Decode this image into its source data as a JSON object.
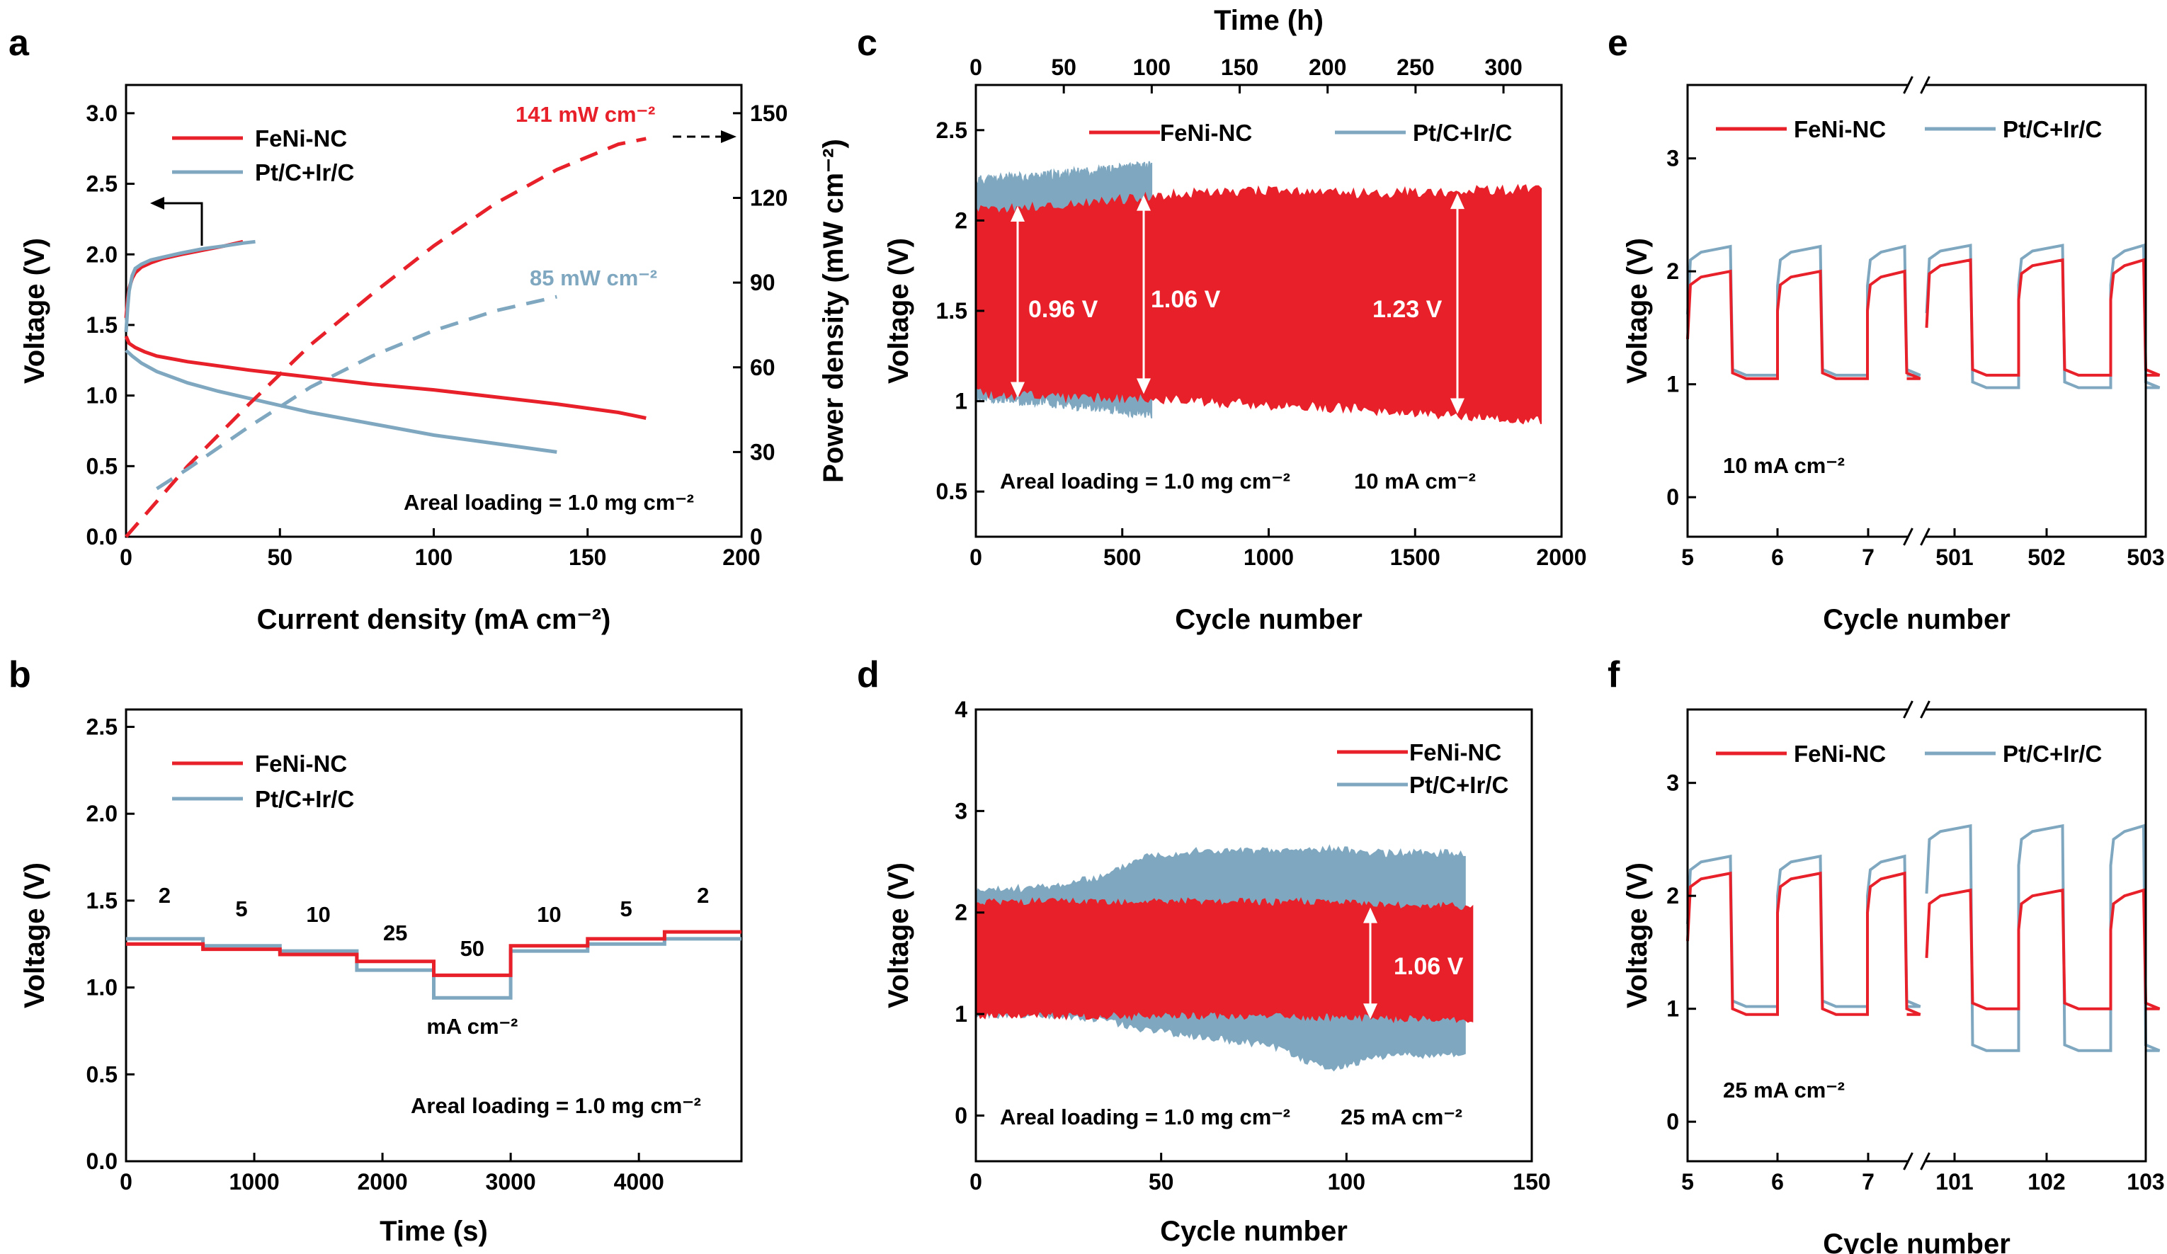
{
  "colors": {
    "red": "#e8202a",
    "blue": "#7fa8c0",
    "black": "#000000",
    "white": "#ffffff"
  },
  "chart_data": [
    {
      "panel": "a",
      "type": "line",
      "xlabel": "Current density (mA cm⁻²)",
      "ylabel": "Voltage (V)",
      "y2label": "Power density (mW cm⁻²)",
      "xlim": [
        0,
        200
      ],
      "ylim": [
        0,
        3.2
      ],
      "y2lim": [
        0,
        160
      ],
      "xticks": [
        0,
        50,
        100,
        150,
        200
      ],
      "yticks": [
        0.0,
        0.5,
        1.0,
        1.5,
        2.0,
        2.5,
        3.0
      ],
      "y2ticks": [
        0,
        30,
        60,
        90,
        120,
        150
      ],
      "legend": [
        "FeNi-NC",
        "Pt/C+Ir/C"
      ],
      "annotations": [
        "141 mW cm⁻²",
        "85 mW cm⁻²",
        "Areal loading = 1.0 mg cm⁻²"
      ],
      "series": [
        {
          "name": "FeNi-NC",
          "axis": "y",
          "style": "solid",
          "x": [
            0,
            1,
            3,
            6,
            10,
            20,
            40,
            60,
            80,
            100,
            120,
            140,
            160,
            169
          ],
          "y": [
            1.42,
            1.37,
            1.34,
            1.31,
            1.28,
            1.24,
            1.18,
            1.13,
            1.08,
            1.04,
            0.99,
            0.94,
            0.88,
            0.84
          ]
        },
        {
          "name": "Pt/C+Ir/C",
          "axis": "y",
          "style": "solid",
          "x": [
            0,
            2,
            5,
            10,
            20,
            30,
            40,
            60,
            80,
            100,
            120,
            140
          ],
          "y": [
            1.32,
            1.28,
            1.23,
            1.17,
            1.09,
            1.03,
            0.98,
            0.88,
            0.8,
            0.72,
            0.66,
            0.6
          ]
        },
        {
          "name": "FeNi-NC",
          "axis": "y",
          "style": "solid",
          "x": [
            0,
            0.5,
            1,
            2,
            3,
            5,
            8,
            12,
            18,
            25,
            32,
            38
          ],
          "y": [
            1.55,
            1.68,
            1.76,
            1.83,
            1.87,
            1.91,
            1.94,
            1.97,
            2.0,
            2.03,
            2.06,
            2.09
          ]
        },
        {
          "name": "Pt/C+Ir/C",
          "axis": "y",
          "style": "solid",
          "x": [
            0,
            0.5,
            1,
            2,
            3,
            5,
            8,
            12,
            18,
            25,
            32,
            38,
            42
          ],
          "y": [
            1.45,
            1.62,
            1.74,
            1.85,
            1.9,
            1.93,
            1.96,
            1.98,
            2.01,
            2.04,
            2.06,
            2.08,
            2.09
          ]
        },
        {
          "name": "FeNi-NC",
          "axis": "y2",
          "style": "dashed",
          "x": [
            0,
            20,
            40,
            60,
            80,
            100,
            120,
            140,
            160,
            169
          ],
          "y": [
            0,
            25,
            47,
            68,
            86,
            103,
            118,
            130,
            139,
            141
          ]
        },
        {
          "name": "Pt/C+Ir/C",
          "axis": "y2",
          "style": "dashed",
          "x": [
            10,
            20,
            40,
            60,
            80,
            100,
            120,
            140
          ],
          "y": [
            17,
            24,
            39,
            53,
            64,
            73,
            80,
            85
          ]
        }
      ]
    },
    {
      "panel": "b",
      "type": "line",
      "xlabel": "Time (s)",
      "ylabel": "Voltage (V)",
      "xlim": [
        0,
        4800
      ],
      "ylim": [
        0,
        2.6
      ],
      "xticks": [
        0,
        1000,
        2000,
        3000,
        4000
      ],
      "yticks": [
        0.0,
        0.5,
        1.0,
        1.5,
        2.0,
        2.5
      ],
      "legend": [
        "FeNi-NC",
        "Pt/C+Ir/C"
      ],
      "step_labels": [
        "2",
        "5",
        "10",
        "25",
        "50",
        "10",
        "5",
        "2"
      ],
      "unit_label": "mA cm⁻²",
      "annotations": [
        "Areal loading = 1.0 mg cm⁻²"
      ],
      "steps_x": [
        0,
        600,
        1200,
        1800,
        2400,
        3000,
        3600,
        4200,
        4800
      ],
      "series": [
        {
          "name": "FeNi-NC",
          "values": [
            1.25,
            1.22,
            1.19,
            1.15,
            1.07,
            1.24,
            1.28,
            1.32
          ]
        },
        {
          "name": "Pt/C+Ir/C",
          "values": [
            1.28,
            1.24,
            1.21,
            1.1,
            0.94,
            1.21,
            1.25,
            1.28
          ]
        }
      ]
    },
    {
      "panel": "c",
      "type": "area",
      "xlabel": "Cycle number",
      "x2label": "Time (h)",
      "ylabel": "Voltage (V)",
      "xlim": [
        0,
        2000
      ],
      "ylim": [
        0.25,
        2.75
      ],
      "x2lim": [
        0,
        333
      ],
      "xticks": [
        0,
        500,
        1000,
        1500,
        2000
      ],
      "x2ticks": [
        0,
        50,
        100,
        150,
        200,
        250,
        300
      ],
      "yticks": [
        0.5,
        1.0,
        1.5,
        2.0,
        2.5
      ],
      "legend": [
        "FeNi-NC",
        "Pt/C+Ir/C"
      ],
      "annotations": [
        "0.96 V",
        "1.06 V",
        "1.23 V",
        "Areal loading = 1.0 mg cm⁻²",
        "10 mA cm⁻²"
      ],
      "series": [
        {
          "name": "Pt/C+Ir/C",
          "x": [
            0,
            200,
            400,
            600
          ],
          "upper": [
            2.22,
            2.24,
            2.27,
            2.3
          ],
          "lower": [
            1.02,
            1.0,
            0.97,
            0.93
          ]
        },
        {
          "name": "FeNi-NC",
          "x": [
            0,
            300,
            600,
            900,
            1200,
            1500,
            1930
          ],
          "upper": [
            2.05,
            2.08,
            2.13,
            2.16,
            2.15,
            2.15,
            2.17
          ],
          "lower": [
            1.05,
            1.03,
            1.02,
            0.99,
            0.97,
            0.94,
            0.9
          ]
        }
      ]
    },
    {
      "panel": "d",
      "type": "area",
      "xlabel": "Cycle number",
      "ylabel": "Voltage (V)",
      "xlim": [
        0,
        150
      ],
      "ylim": [
        -0.45,
        4.0
      ],
      "xticks": [
        0,
        50,
        100,
        150
      ],
      "yticks": [
        0,
        1,
        2,
        3,
        4
      ],
      "legend": [
        "FeNi-NC",
        "Pt/C+Ir/C"
      ],
      "annotations": [
        "1.06 V",
        "Areal loading = 1.0 mg cm⁻²",
        "25 mA cm⁻²"
      ],
      "series": [
        {
          "name": "Pt/C+Ir/C",
          "x": [
            0,
            20,
            35,
            45,
            60,
            80,
            95,
            110,
            132
          ],
          "upper": [
            2.2,
            2.25,
            2.35,
            2.55,
            2.6,
            2.6,
            2.62,
            2.58,
            2.58
          ],
          "lower": [
            1.0,
            1.0,
            0.95,
            0.85,
            0.78,
            0.7,
            0.45,
            0.6,
            0.6
          ]
        },
        {
          "name": "FeNi-NC",
          "x": [
            0,
            30,
            60,
            90,
            110,
            134
          ],
          "upper": [
            2.1,
            2.1,
            2.1,
            2.1,
            2.07,
            2.05
          ],
          "lower": [
            1.0,
            0.99,
            0.99,
            0.98,
            0.97,
            0.95
          ]
        }
      ]
    },
    {
      "panel": "e",
      "type": "line",
      "xlabel": "Cycle number",
      "ylabel": "Voltage (V)",
      "ylim": [
        -0.35,
        3.65
      ],
      "xticks": [
        "5",
        "6",
        "7",
        "501",
        "502",
        "503"
      ],
      "yticks": [
        0,
        1,
        2,
        3
      ],
      "axis_break": true,
      "legend": [
        "FeNi-NC",
        "Pt/C+Ir/C"
      ],
      "annotations": [
        "10 mA cm⁻²"
      ],
      "segments": [
        {
          "x": [
            5,
            7.5
          ],
          "FeNi-NC": {
            "charge": 2.0,
            "discharge": 1.05
          },
          "Pt/C+Ir/C": {
            "charge": 2.22,
            "discharge": 1.08
          }
        },
        {
          "x": [
            500,
            503
          ],
          "FeNi-NC": {
            "charge": 2.1,
            "discharge": 1.08
          },
          "Pt/C+Ir/C": {
            "charge": 2.23,
            "discharge": 0.97
          }
        }
      ]
    },
    {
      "panel": "f",
      "type": "line",
      "xlabel": "Cycle number",
      "ylabel": "Voltage (V)",
      "ylim": [
        -0.35,
        3.65
      ],
      "xticks": [
        "5",
        "6",
        "7",
        "101",
        "102",
        "103"
      ],
      "yticks": [
        0,
        1,
        2,
        3
      ],
      "axis_break": true,
      "legend": [
        "FeNi-NC",
        "Pt/C+Ir/C"
      ],
      "annotations": [
        "25 mA cm⁻²"
      ],
      "segments": [
        {
          "x": [
            5,
            7.5
          ],
          "FeNi-NC": {
            "charge": 2.2,
            "discharge": 0.95
          },
          "Pt/C+Ir/C": {
            "charge": 2.35,
            "discharge": 1.02
          }
        },
        {
          "x": [
            100,
            103
          ],
          "FeNi-NC": {
            "charge": 2.05,
            "discharge": 1.0
          },
          "Pt/C+Ir/C": {
            "charge": 2.62,
            "discharge": 0.63
          }
        }
      ]
    }
  ]
}
